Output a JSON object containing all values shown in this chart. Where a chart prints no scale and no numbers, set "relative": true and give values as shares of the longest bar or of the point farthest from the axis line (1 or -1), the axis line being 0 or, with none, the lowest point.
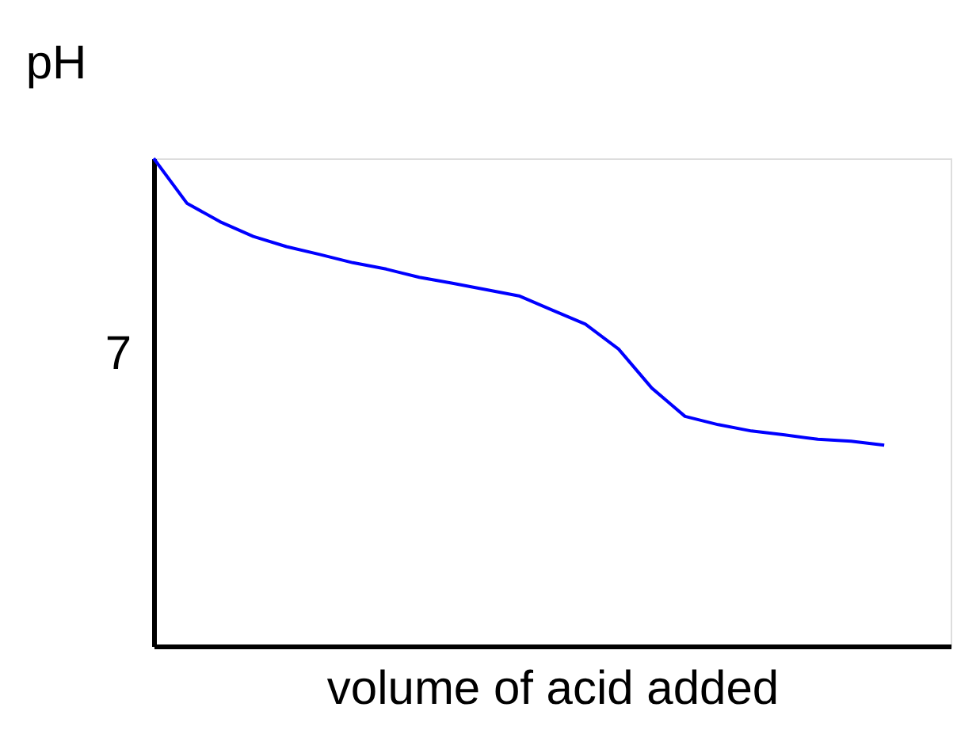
{
  "chart_data": {
    "type": "line",
    "xlabel": "volume of acid added",
    "ylabel": "pH",
    "categories": [
      null,
      null,
      null,
      null,
      null,
      null,
      null,
      null,
      null,
      null,
      null,
      null,
      null,
      null,
      null,
      null,
      null,
      null,
      null,
      null,
      null,
      null,
      null,
      null,
      null
    ],
    "series": [
      {
        "color": "#0000ff",
        "values": [
          1,
          0.908,
          0.87,
          0.84,
          0.819,
          0.803,
          0.786,
          0.773,
          0.756,
          0.744,
          0.731,
          0.718,
          0.689,
          0.66,
          0.609,
          0.529,
          0.471,
          0.454,
          0.441,
          0.433,
          0.424,
          0.42,
          0.412,
          null,
          null
        ]
      }
    ],
    "relative": true,
    "annotations": [
      "7"
    ],
    "tick_labels": false,
    "grid": false,
    "marker": "none",
    "line_style": "solid"
  }
}
